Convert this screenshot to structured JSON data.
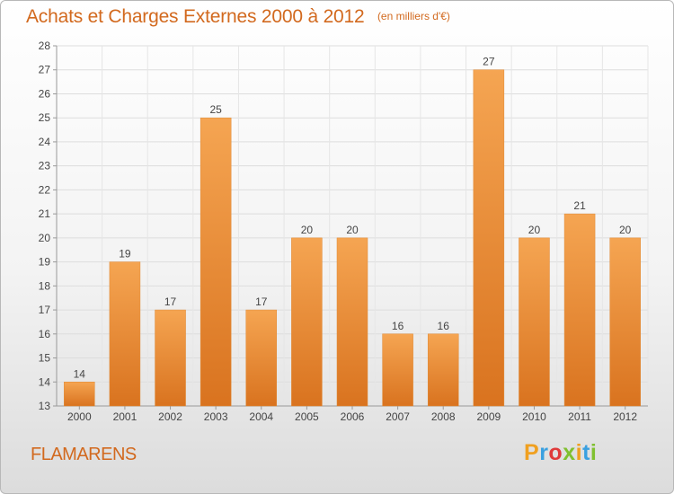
{
  "chart_data": {
    "type": "bar",
    "title": "Achats et Charges Externes 2000 à 2012",
    "unit_note": "(en milliers d'€)",
    "categories": [
      "2000",
      "2001",
      "2002",
      "2003",
      "2004",
      "2005",
      "2006",
      "2007",
      "2008",
      "2009",
      "2010",
      "2011",
      "2012"
    ],
    "values": [
      14,
      19,
      17,
      25,
      17,
      20,
      20,
      16,
      16,
      27,
      20,
      21,
      20
    ],
    "ylim": [
      13,
      28
    ],
    "yticks": [
      13,
      14,
      15,
      16,
      17,
      18,
      19,
      20,
      21,
      22,
      23,
      24,
      25,
      26,
      27,
      28
    ],
    "grid": true,
    "bar_color_top": "#f5a552",
    "bar_color_bottom": "#d9731f"
  },
  "footer": {
    "commune": "FLAMARENS",
    "logo_letters": [
      "P",
      "r",
      "o",
      "x",
      "i",
      "t",
      "i"
    ],
    "logo_colors": [
      "#f0a020",
      "#3aa0e0",
      "#e03a3a",
      "#80c030",
      "#f0a020",
      "#3aa0e0",
      "#80c030"
    ]
  },
  "text_color": "#d2691e"
}
